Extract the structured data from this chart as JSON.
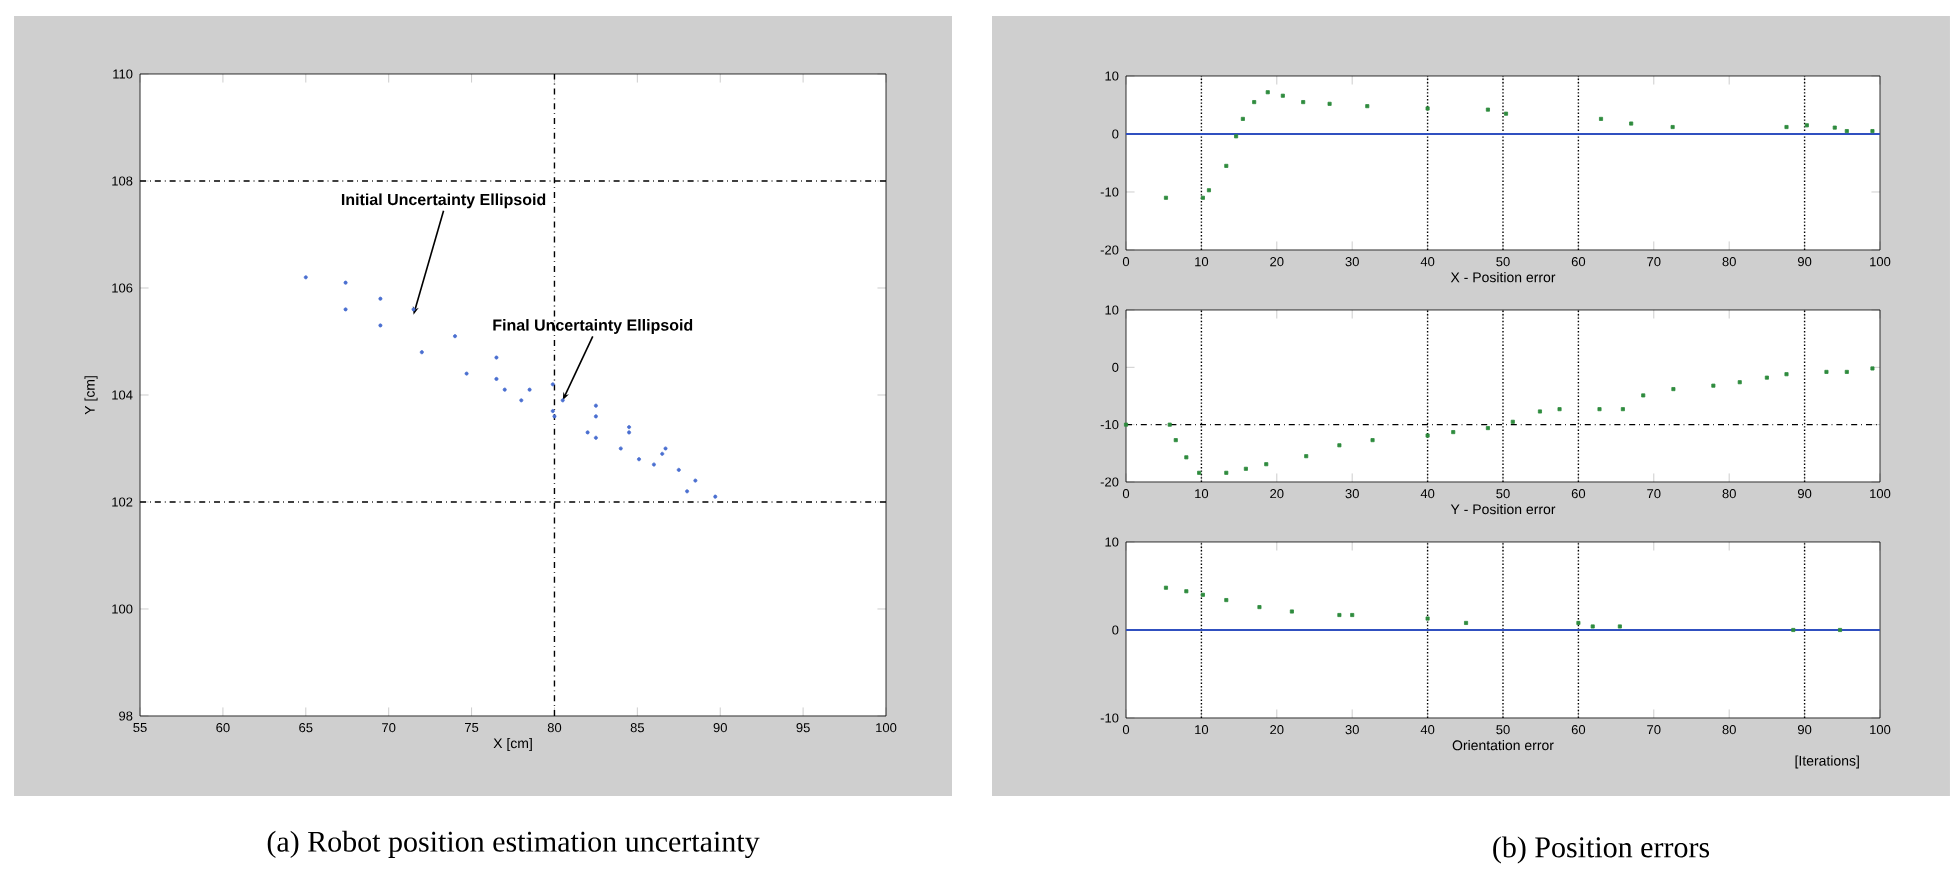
{
  "chart_data": [
    {
      "type": "scatter",
      "xlabel": "X [cm]",
      "ylabel": "Y [cm]",
      "marker": "circle",
      "xlim": [
        55,
        100
      ],
      "xticks": [
        55,
        60,
        65,
        70,
        75,
        80,
        85,
        90,
        95,
        100
      ],
      "ylim": [
        98,
        110
      ],
      "yticks": [
        98,
        100,
        102,
        104,
        106,
        108,
        110
      ],
      "series": [
        {
          "name": null,
          "color": "#4a6fd0",
          "x": [
            65.0,
            67.4,
            69.5,
            71.5,
            74.0,
            76.5,
            79.9,
            82.5,
            84.5,
            86.7,
            88.5,
            89.7,
            88.0,
            85.1,
            82.5,
            79.9,
            77.0,
            74.7,
            72.0,
            69.5,
            67.4
          ],
          "values": [
            106.2,
            106.1,
            105.8,
            105.6,
            105.1,
            104.7,
            104.2,
            103.8,
            103.4,
            103.0,
            102.4,
            102.1,
            102.2,
            102.8,
            103.2,
            103.7,
            104.1,
            104.4,
            104.8,
            105.3,
            105.6
          ]
        },
        {
          "name": null,
          "color": "#4a6fd0",
          "x": [
            76.5,
            78.5,
            80.5,
            82.5,
            84.5,
            86.5,
            87.5,
            86.0,
            84.0,
            82.0,
            80.0,
            78.0
          ],
          "values": [
            104.3,
            104.1,
            103.9,
            103.6,
            103.3,
            102.9,
            102.6,
            102.7,
            103.0,
            103.3,
            103.6,
            103.9
          ]
        }
      ],
      "ref_lines": [
        {
          "axis": "x",
          "value": 80,
          "color": "#000000",
          "line_style": "dashdot"
        },
        {
          "axis": "y",
          "value": 108,
          "color": "#000000",
          "line_style": "dashdot"
        },
        {
          "axis": "y",
          "value": 102,
          "color": "#000000",
          "line_style": "dashdot"
        }
      ],
      "annotations": [
        {
          "text": "Initial Uncertainty Ellipsoid",
          "x": 71.5,
          "y": 105.5
        },
        {
          "text": "Final Uncertainty Ellipsoid",
          "x": 80.5,
          "y": 103.9
        },
        "(a) Robot position estimation uncertainty"
      ]
    },
    {
      "type": "scatter",
      "xlabel": "X - Position error",
      "marker": "square",
      "xlim": [
        0,
        100
      ],
      "xticks": [
        0,
        10,
        20,
        30,
        40,
        50,
        60,
        70,
        80,
        90,
        100
      ],
      "ylim": [
        -20,
        10
      ],
      "yticks": [
        -20,
        -10,
        0,
        10
      ],
      "series": [
        {
          "name": null,
          "color": "#2e8b3e",
          "x": [
            5.3,
            10.2,
            11,
            13.3,
            14.6,
            15.5,
            17,
            18.8,
            20.8,
            23.5,
            27,
            32,
            40,
            48,
            50.4,
            63,
            67,
            72.5,
            87.6,
            90.3,
            94,
            95.6,
            99
          ],
          "values": [
            -11,
            -11,
            -9.7,
            -5.5,
            -0.4,
            2.6,
            5.5,
            7.2,
            6.6,
            5.5,
            5.2,
            4.8,
            4.4,
            4.2,
            3.5,
            2.6,
            1.8,
            1.2,
            1.2,
            1.5,
            1.1,
            0.5,
            0.5
          ]
        }
      ],
      "ref_lines": [
        {
          "axis": "x",
          "value": 10,
          "color": "#000000",
          "line_style": "dotted"
        },
        {
          "axis": "x",
          "value": 40,
          "color": "#000000",
          "line_style": "dotted"
        },
        {
          "axis": "x",
          "value": 50,
          "color": "#000000",
          "line_style": "dotted"
        },
        {
          "axis": "x",
          "value": 60,
          "color": "#000000",
          "line_style": "dotted"
        },
        {
          "axis": "x",
          "value": 90,
          "color": "#000000",
          "line_style": "dotted"
        },
        {
          "axis": "y",
          "value": 0,
          "color": "#3050c0",
          "line_style": "solid"
        }
      ]
    },
    {
      "type": "scatter",
      "xlabel": "Y - Position error",
      "marker": "square",
      "xlim": [
        0,
        100
      ],
      "xticks": [
        0,
        10,
        20,
        30,
        40,
        50,
        60,
        70,
        80,
        90,
        100
      ],
      "ylim": [
        -20,
        10
      ],
      "yticks": [
        -20,
        -10,
        0,
        10
      ],
      "series": [
        {
          "name": null,
          "color": "#2e8b3e",
          "x": [
            0,
            5.8,
            6.6,
            8,
            9.7,
            13.3,
            15.9,
            18.6,
            23.9,
            28.3,
            32.7,
            40,
            43.4,
            48,
            51.3,
            54.9,
            57.5,
            62.8,
            65.9,
            68.6,
            72.6,
            77.9,
            81.4,
            85,
            87.6,
            92.9,
            95.6,
            99
          ],
          "values": [
            -10,
            -10,
            -12.7,
            -15.7,
            -18.4,
            -18.4,
            -17.7,
            -16.9,
            -15.5,
            -13.6,
            -12.7,
            -11.9,
            -11.3,
            -10.6,
            -9.5,
            -7.7,
            -7.3,
            -7.3,
            -7.3,
            -4.9,
            -3.8,
            -3.2,
            -2.6,
            -1.8,
            -1.2,
            -0.8,
            -0.8,
            -0.2
          ]
        }
      ],
      "ref_lines": [
        {
          "axis": "x",
          "value": 10,
          "color": "#000000",
          "line_style": "dotted"
        },
        {
          "axis": "x",
          "value": 40,
          "color": "#000000",
          "line_style": "dotted"
        },
        {
          "axis": "x",
          "value": 50,
          "color": "#000000",
          "line_style": "dotted"
        },
        {
          "axis": "x",
          "value": 60,
          "color": "#000000",
          "line_style": "dotted"
        },
        {
          "axis": "x",
          "value": 90,
          "color": "#000000",
          "line_style": "dotted"
        },
        {
          "axis": "y",
          "value": -10,
          "color": "#000000",
          "line_style": "dashdot"
        }
      ]
    },
    {
      "type": "scatter",
      "xlabel": "Orientation error",
      "marker": "square",
      "xlim": [
        0,
        100
      ],
      "xticks": [
        0,
        10,
        20,
        30,
        40,
        50,
        60,
        70,
        80,
        90,
        100
      ],
      "ylim": [
        -10,
        10
      ],
      "yticks": [
        -10,
        0,
        10
      ],
      "series": [
        {
          "name": null,
          "color": "#2e8b3e",
          "x": [
            5.3,
            8,
            10.2,
            13.3,
            17.7,
            22,
            28.3,
            30,
            40,
            45.1,
            60,
            61.9,
            65.5,
            88.5,
            94.7
          ],
          "values": [
            4.8,
            4.4,
            4,
            3.4,
            2.6,
            2.1,
            1.7,
            1.7,
            1.3,
            0.8,
            0.8,
            0.4,
            0.4,
            0,
            0
          ]
        }
      ],
      "ref_lines": [
        {
          "axis": "x",
          "value": 10,
          "color": "#000000",
          "line_style": "dotted"
        },
        {
          "axis": "x",
          "value": 40,
          "color": "#000000",
          "line_style": "dotted"
        },
        {
          "axis": "x",
          "value": 50,
          "color": "#000000",
          "line_style": "dotted"
        },
        {
          "axis": "x",
          "value": 60,
          "color": "#000000",
          "line_style": "dotted"
        },
        {
          "axis": "x",
          "value": 90,
          "color": "#000000",
          "line_style": "dotted"
        },
        {
          "axis": "y",
          "value": 0,
          "color": "#3050c0",
          "line_style": "solid"
        }
      ],
      "annotations": [
        "[Iterations]",
        "(b) Position errors"
      ]
    }
  ]
}
